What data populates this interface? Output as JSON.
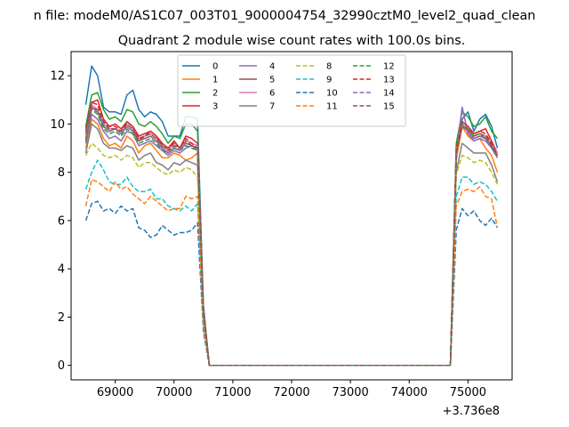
{
  "chart_data": {
    "type": "line",
    "suptitle": "n file: modeM0/AS1C07_003T01_9000004754_32990cztM0_level2_quad_clean",
    "title": "Quadrant 2 module wise count rates with 100.0s bins.",
    "xlabel": "",
    "ylabel": "",
    "x_offset_label": "+3.736e8",
    "xlim": [
      68250,
      75750
    ],
    "ylim": [
      -0.6,
      13.0
    ],
    "xticks": [
      69000,
      70000,
      71000,
      72000,
      73000,
      74000,
      75000
    ],
    "yticks": [
      0,
      2,
      4,
      6,
      8,
      10,
      12
    ],
    "grid": false,
    "legend": {
      "placement": "upper-center",
      "columns": 4
    },
    "x": [
      68500,
      68600,
      68700,
      68800,
      68900,
      69000,
      69100,
      69200,
      69300,
      69400,
      69500,
      69600,
      69700,
      69800,
      69900,
      70000,
      70100,
      70200,
      70300,
      70400,
      70500,
      70600,
      74700,
      74800,
      74900,
      75000,
      75100,
      75200,
      75300,
      75400,
      75500
    ],
    "series": [
      {
        "name": "0",
        "color": "#1f77b4",
        "dash": "solid",
        "values": [
          10.8,
          12.4,
          12.0,
          10.7,
          10.5,
          10.5,
          10.4,
          11.2,
          11.4,
          10.6,
          10.3,
          10.5,
          10.4,
          10.1,
          9.5,
          9.5,
          9.5,
          10.3,
          10.3,
          10.2,
          2.5,
          0,
          0,
          8.6,
          10.2,
          10.5,
          9.7,
          10.2,
          10.4,
          9.9,
          9.0
        ]
      },
      {
        "name": "1",
        "color": "#ff7f0e",
        "dash": "solid",
        "values": [
          9.0,
          10.2,
          10.0,
          9.4,
          9.1,
          9.2,
          9.0,
          9.5,
          9.3,
          8.8,
          9.1,
          9.2,
          8.9,
          8.6,
          8.6,
          8.8,
          8.7,
          8.5,
          8.6,
          8.8,
          2.0,
          0,
          0,
          8.5,
          9.9,
          9.5,
          9.3,
          9.4,
          9.0,
          8.7,
          8.0
        ]
      },
      {
        "name": "2",
        "color": "#2ca02c",
        "dash": "solid",
        "values": [
          9.9,
          11.2,
          11.3,
          10.6,
          10.2,
          10.3,
          10.1,
          10.6,
          10.5,
          10.0,
          9.9,
          10.1,
          9.9,
          9.6,
          9.2,
          9.5,
          9.4,
          10.0,
          10.0,
          9.7,
          2.4,
          0,
          0,
          9.2,
          10.5,
          10.3,
          9.9,
          10.0,
          10.3,
          9.7,
          9.4
        ]
      },
      {
        "name": "3",
        "color": "#d62728",
        "dash": "solid",
        "values": [
          9.6,
          10.9,
          11.0,
          10.2,
          9.9,
          10.0,
          9.8,
          10.1,
          9.9,
          9.5,
          9.6,
          9.7,
          9.5,
          9.2,
          9.0,
          9.3,
          9.0,
          9.5,
          9.4,
          9.2,
          2.3,
          0,
          0,
          9.0,
          10.1,
          9.9,
          9.6,
          9.7,
          9.8,
          9.3,
          8.8
        ]
      },
      {
        "name": "4",
        "color": "#9467bd",
        "dash": "solid",
        "values": [
          9.2,
          10.4,
          10.2,
          9.7,
          9.4,
          9.5,
          9.3,
          9.7,
          9.6,
          9.1,
          9.2,
          9.3,
          9.1,
          8.9,
          8.7,
          8.9,
          8.8,
          9.0,
          9.1,
          9.0,
          2.2,
          0,
          0,
          8.7,
          10.7,
          9.6,
          9.3,
          9.4,
          9.3,
          9.0,
          8.6
        ]
      },
      {
        "name": "5",
        "color": "#8c564b",
        "dash": "solid",
        "values": [
          9.4,
          10.7,
          10.5,
          9.9,
          9.7,
          9.8,
          9.6,
          9.9,
          9.7,
          9.3,
          9.4,
          9.5,
          9.3,
          9.0,
          8.8,
          9.0,
          8.9,
          9.2,
          9.1,
          9.0,
          2.2,
          0,
          0,
          8.8,
          9.9,
          9.7,
          9.4,
          9.5,
          9.4,
          9.1,
          8.7
        ]
      },
      {
        "name": "6",
        "color": "#e377c2",
        "dash": "solid",
        "values": [
          9.5,
          10.8,
          10.6,
          10.0,
          9.8,
          9.8,
          9.7,
          10.0,
          9.8,
          9.4,
          9.5,
          9.6,
          9.4,
          9.1,
          8.9,
          9.2,
          9.0,
          9.3,
          9.2,
          9.1,
          2.3,
          0,
          0,
          8.9,
          10.0,
          9.8,
          9.5,
          9.6,
          9.5,
          9.2,
          8.8
        ]
      },
      {
        "name": "7",
        "color": "#7f7f7f",
        "dash": "solid",
        "values": [
          8.8,
          10.0,
          9.8,
          9.2,
          9.0,
          9.0,
          8.9,
          9.1,
          9.0,
          8.5,
          8.7,
          8.8,
          8.4,
          8.3,
          8.1,
          8.4,
          8.3,
          8.5,
          8.4,
          8.3,
          2.0,
          0,
          0,
          8.0,
          9.2,
          9.0,
          8.8,
          8.8,
          8.8,
          8.3,
          7.6
        ]
      },
      {
        "name": "8",
        "color": "#bcbd22",
        "dash": "dashed",
        "values": [
          8.7,
          9.2,
          9.0,
          8.7,
          8.6,
          8.7,
          8.5,
          8.7,
          8.6,
          8.2,
          8.4,
          8.4,
          8.2,
          8.0,
          7.9,
          8.1,
          8.0,
          8.2,
          8.1,
          7.8,
          1.9,
          0,
          0,
          7.9,
          8.7,
          8.6,
          8.4,
          8.5,
          8.4,
          8.0,
          7.5
        ]
      },
      {
        "name": "9",
        "color": "#17becf",
        "dash": "dashed",
        "values": [
          7.3,
          8.0,
          8.5,
          8.1,
          7.6,
          7.5,
          7.5,
          7.8,
          7.4,
          7.2,
          7.2,
          7.3,
          6.9,
          6.9,
          6.6,
          6.5,
          6.4,
          6.6,
          6.4,
          6.7,
          1.6,
          0,
          0,
          7.0,
          7.8,
          7.8,
          7.5,
          7.6,
          7.5,
          7.2,
          6.8
        ]
      },
      {
        "name": "10",
        "color": "#1f77b4",
        "dash": "dashed",
        "values": [
          6.0,
          6.7,
          6.8,
          6.4,
          6.5,
          6.3,
          6.6,
          6.4,
          6.5,
          5.7,
          5.6,
          5.3,
          5.4,
          5.8,
          5.6,
          5.4,
          5.5,
          5.5,
          5.6,
          5.9,
          1.4,
          0,
          0,
          5.6,
          6.5,
          6.2,
          6.4,
          6.0,
          5.8,
          6.1,
          5.7
        ]
      },
      {
        "name": "11",
        "color": "#ff7f0e",
        "dash": "dashed",
        "values": [
          6.6,
          7.7,
          7.6,
          7.4,
          7.2,
          7.6,
          7.3,
          7.4,
          7.1,
          6.9,
          6.7,
          7.0,
          6.8,
          6.6,
          6.4,
          6.5,
          6.5,
          7.0,
          6.9,
          7.0,
          1.6,
          0,
          0,
          6.6,
          7.2,
          7.3,
          7.2,
          7.4,
          7.0,
          6.9,
          5.7
        ]
      },
      {
        "name": "12",
        "color": "#2ca02c",
        "dash": "dashed",
        "values": [
          9.3,
          10.6,
          10.4,
          9.8,
          9.6,
          9.7,
          9.5,
          9.8,
          9.6,
          9.2,
          9.3,
          9.4,
          9.2,
          8.9,
          8.8,
          9.0,
          8.9,
          9.1,
          9.0,
          8.9,
          2.2,
          0,
          0,
          8.9,
          10.0,
          9.8,
          9.5,
          9.6,
          9.4,
          9.1,
          8.6
        ]
      },
      {
        "name": "13",
        "color": "#d62728",
        "dash": "dashed",
        "values": [
          9.8,
          10.9,
          10.8,
          10.1,
          9.9,
          9.9,
          9.7,
          10.1,
          9.9,
          9.4,
          9.5,
          9.7,
          9.5,
          9.1,
          9.0,
          9.2,
          9.0,
          9.4,
          9.2,
          9.0,
          2.3,
          0,
          0,
          8.9,
          10.1,
          9.9,
          9.6,
          9.7,
          9.6,
          9.2,
          8.7
        ]
      },
      {
        "name": "14",
        "color": "#9467bd",
        "dash": "dashed",
        "values": [
          9.6,
          10.6,
          10.5,
          10.0,
          9.7,
          9.8,
          9.6,
          9.9,
          9.7,
          9.3,
          9.4,
          9.5,
          9.3,
          9.0,
          8.8,
          9.1,
          8.9,
          9.2,
          9.1,
          8.9,
          2.2,
          0,
          0,
          8.8,
          9.9,
          9.7,
          9.4,
          9.5,
          9.4,
          9.0,
          8.6
        ]
      },
      {
        "name": "15",
        "color": "#8c564b",
        "dash": "dashed",
        "values": [
          9.7,
          10.7,
          10.6,
          10.1,
          9.8,
          9.8,
          9.7,
          10.0,
          9.8,
          9.3,
          9.5,
          9.6,
          9.4,
          9.1,
          8.9,
          9.1,
          9.0,
          9.3,
          9.1,
          9.0,
          2.2,
          0,
          0,
          8.8,
          9.9,
          9.8,
          9.5,
          9.6,
          9.5,
          9.1,
          8.7
        ]
      }
    ]
  }
}
